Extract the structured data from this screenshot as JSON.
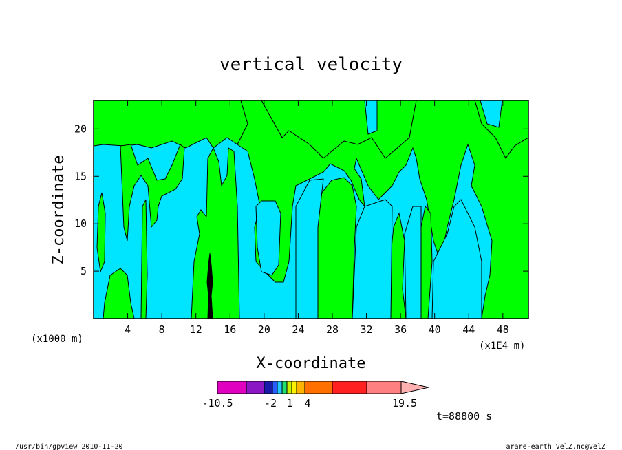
{
  "chart_data": {
    "type": "heatmap",
    "title": "vertical velocity",
    "xlabel": "X-coordinate",
    "ylabel": "Z-coordinate",
    "x_unit_note": "(x1E4 m)",
    "y_unit_note": "(x1000 m)",
    "x_ticks": [
      4,
      8,
      12,
      16,
      20,
      24,
      28,
      32,
      36,
      40,
      44,
      48
    ],
    "y_ticks": [
      5,
      10,
      15,
      20
    ],
    "xlim": [
      0,
      51
    ],
    "ylim": [
      0,
      23
    ],
    "contour_threshold": 0,
    "colors": {
      "negative": "#00e5ff",
      "positive": "#00ff00",
      "strong_core": "#000000"
    },
    "regions_positive": [
      {
        "x": [
          1,
          2
        ],
        "z": [
          0,
          13
        ]
      },
      {
        "x": [
          2,
          5
        ],
        "z": [
          0,
          6
        ]
      },
      {
        "x": [
          6,
          6.5
        ],
        "z": [
          0,
          16
        ]
      },
      {
        "x": [
          12,
          16
        ],
        "z": [
          0,
          18
        ]
      },
      {
        "x": [
          17,
          24
        ],
        "z": [
          8,
          20
        ]
      },
      {
        "x": [
          26,
          30
        ],
        "z": [
          0,
          15
        ]
      },
      {
        "x": [
          34,
          37
        ],
        "z": [
          0,
          15
        ]
      },
      {
        "x": [
          38,
          40
        ],
        "z": [
          0,
          12
        ]
      },
      {
        "x": [
          41,
          51
        ],
        "z": [
          0,
          17
        ]
      },
      {
        "x": [
          0,
          51
        ],
        "z": [
          17,
          23
        ]
      }
    ],
    "strong_updraft": {
      "x": 13.8,
      "z": [
        0,
        7
      ]
    },
    "colorbar": {
      "tick_labels": [
        "-10.5",
        "-2",
        "1",
        "4",
        "19.5"
      ],
      "colors": [
        "#e000c0",
        "#8a16c4",
        "#1a1aa8",
        "#2a5cff",
        "#20c8ff",
        "#20e070",
        "#c8f000",
        "#fff000",
        "#ffb400",
        "#ff7000",
        "#ff2020",
        "#ff8080",
        "#ffb0b0"
      ],
      "overflow_arrow": true
    },
    "time_label": "t=88800 s"
  },
  "footer": {
    "left": "/usr/bin/gpview   2010-11-20",
    "right": "arare-earth_VelZ.nc@VelZ"
  }
}
